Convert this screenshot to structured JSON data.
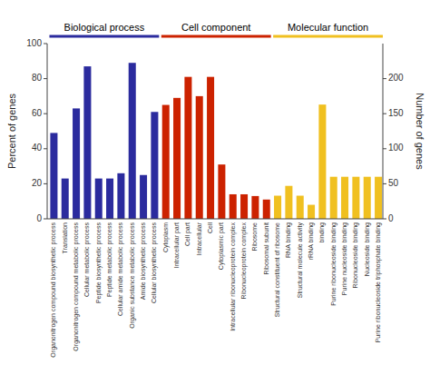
{
  "chart_data": {
    "type": "bar",
    "categories": [
      "Organonitrogen compound biosynthetic process",
      "Translation",
      "Organonitrogen compound metabolic process",
      "Cellular metabolic process",
      "Peptide biosynthetic process",
      "Peptide metabolic process",
      "Cellular amide metabolic process",
      "Organic substance metabolic process",
      "Amide biosynthetic process",
      "Cellular biosynthetic process",
      "Cytoplasm",
      "Intracellular part",
      "Cell part",
      "Intracellular",
      "Cell",
      "Cytoplasmic part",
      "Intracellular ribonucleoprotein complex",
      "Ribonucleoprotein complex",
      "Ribosome",
      "Ribosomal subunit",
      "Structural constituent of ribosome",
      "RNA binding",
      "Structural molecule activity",
      "rRNA binding",
      "binding",
      "Purine ribonucleoside binding",
      "Purine nucleoside binding",
      "Ribonucleoside binding",
      "Nucleoside binding",
      "Purine ribonucleoside triphosphate binding"
    ],
    "series": [
      {
        "values": [
          49,
          23,
          63,
          87,
          23,
          23,
          26,
          89,
          25,
          61,
          65,
          69,
          81,
          70,
          81,
          31,
          14,
          14,
          13,
          11,
          0,
          0,
          0,
          0,
          0,
          0,
          0,
          0,
          0,
          0
        ]
      },
      {
        "axis": "y2",
        "values": [
          0,
          0,
          0,
          0,
          0,
          0,
          0,
          0,
          0,
          0,
          0,
          0,
          0,
          0,
          0,
          0,
          0,
          0,
          0,
          0,
          33,
          47,
          33,
          20,
          163,
          60,
          60,
          60,
          60,
          60
        ]
      }
    ],
    "colors": [
      "#2b2b9e",
      "#2b2b9e",
      "#2b2b9e",
      "#2b2b9e",
      "#2b2b9e",
      "#2b2b9e",
      "#2b2b9e",
      "#2b2b9e",
      "#2b2b9e",
      "#2b2b9e",
      "#cc2200",
      "#cc2200",
      "#cc2200",
      "#cc2200",
      "#cc2200",
      "#cc2200",
      "#cc2200",
      "#cc2200",
      "#cc2200",
      "#cc2200",
      "#f0c020",
      "#f0c020",
      "#f0c020",
      "#f0c020",
      "#f0c020",
      "#f0c020",
      "#f0c020",
      "#f0c020",
      "#f0c020",
      "#f0c020"
    ],
    "annotations": [
      {
        "text": "Biological process",
        "color": "#2b2b9e",
        "from": "Organonitrogen compound biosynthetic process",
        "to": "Cellular biosynthetic process"
      },
      {
        "text": "Cell component",
        "color": "#cc2200",
        "from": "Cytoplasm",
        "to": "Ribosomal subunit"
      },
      {
        "text": "Molecular function",
        "color": "#f0c020",
        "from": "Structural constituent of ribosome",
        "to": "Purine ribonucleoside triphosphate binding"
      }
    ],
    "ylabel": "Percent of genes",
    "y2label": "Number of genes",
    "ylim": [
      0,
      100
    ],
    "yticks": [
      0,
      20,
      40,
      60,
      80,
      100
    ],
    "y2lim": [
      0,
      250
    ],
    "y2ticks": [
      0,
      50,
      100,
      150,
      200
    ],
    "grid": false
  }
}
